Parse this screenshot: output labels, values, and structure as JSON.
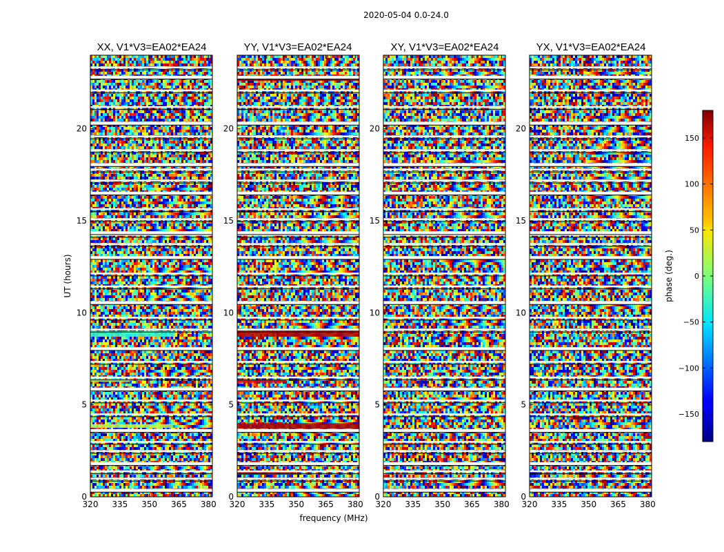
{
  "chart_data": {
    "type": "heatmap",
    "title": "2020-05-04 0.0-24.0",
    "xlabel": "frequency (MHz)",
    "ylabel": "UT (hours)",
    "xlim": [
      320,
      382
    ],
    "ylim": [
      0,
      24
    ],
    "x_ticks": [
      320,
      335,
      350,
      365,
      380
    ],
    "y_ticks": [
      0,
      5,
      10,
      15,
      20
    ],
    "panels": [
      {
        "title": "XX, V1*V3=EA02*EA24",
        "polarization": "XX"
      },
      {
        "title": "YY, V1*V3=EA02*EA24",
        "polarization": "YY"
      },
      {
        "title": "XY, V1*V3=EA02*EA24",
        "polarization": "XY"
      },
      {
        "title": "YX, V1*V3=EA02*EA24",
        "polarization": "YX"
      }
    ],
    "colorbar": {
      "label": "phase (deg.)",
      "range": [
        -180,
        180
      ],
      "ticks": [
        150,
        100,
        50,
        0,
        -50,
        -100,
        -150
      ],
      "colormap": "jet"
    },
    "flagged_gaps_hours": [
      0.35,
      0.95,
      1.35,
      1.8,
      2.45,
      2.95,
      3.6,
      4.45,
      5.2,
      5.85,
      6.45,
      7.3,
      8.05,
      9.05,
      9.7,
      10.55,
      11.4,
      12.1,
      13.0,
      13.7,
      14.2,
      14.35,
      15.05,
      15.6,
      16.5,
      17.15,
      17.75,
      18.05,
      18.8,
      19.55,
      20.3,
      21.15,
      22.05,
      22.8,
      23.3
    ],
    "highlight_bands_hours": [
      {
        "panel": "XX",
        "y0": 8.7,
        "y1": 9.0,
        "phase": -30,
        "x1": 362
      },
      {
        "panel": "XX",
        "y0": 3.75,
        "y1": 3.95,
        "phase": 20,
        "x1": 362
      },
      {
        "panel": "XX",
        "y0": 6.25,
        "y1": 6.4,
        "phase": 10,
        "x1": 340
      },
      {
        "panel": "YY",
        "y0": 8.7,
        "y1": 9.05,
        "phase": 160,
        "x1": 382
      },
      {
        "panel": "YY",
        "y0": 3.7,
        "y1": 4.0,
        "phase": 165,
        "x1": 382
      },
      {
        "panel": "YY",
        "y0": 22.6,
        "y1": 22.9,
        "phase": 170,
        "x1": 382
      },
      {
        "panel": "YY",
        "y0": 1.2,
        "y1": 1.4,
        "phase": 150,
        "x1": 350
      },
      {
        "panel": "YY",
        "y0": 6.2,
        "y1": 6.35,
        "phase": 140,
        "x1": 345
      }
    ]
  }
}
